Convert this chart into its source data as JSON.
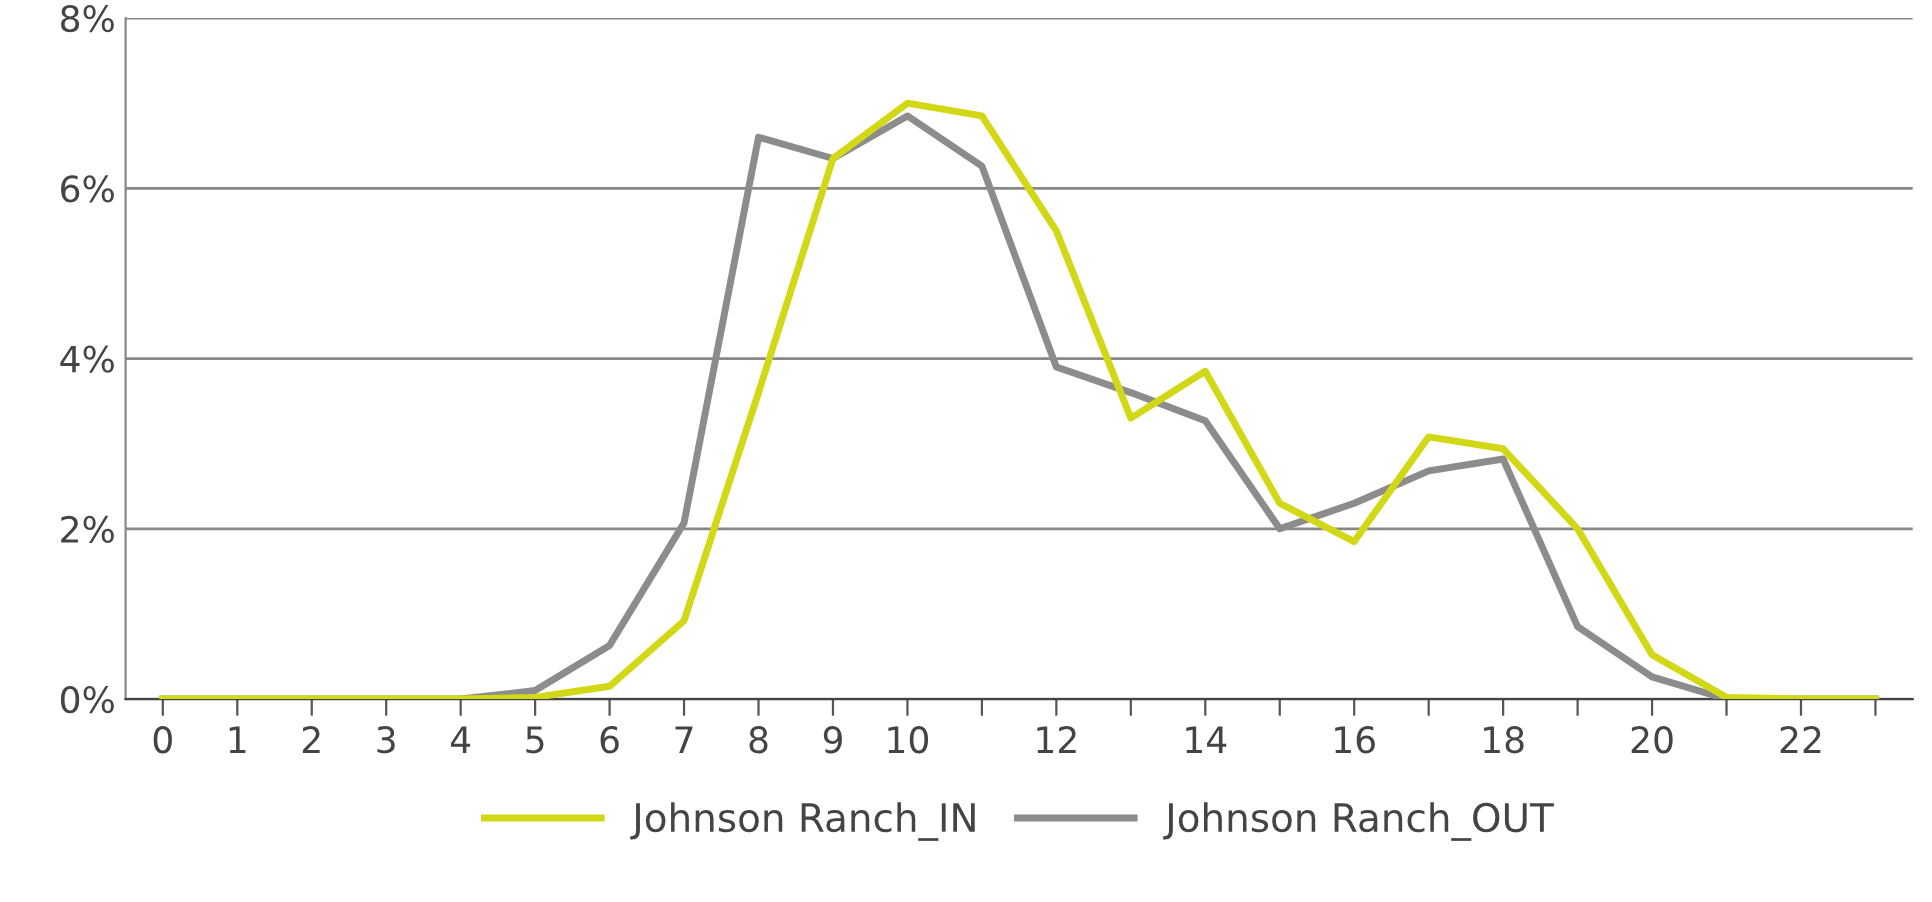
{
  "chart_data": {
    "type": "line",
    "categories": [
      "0",
      "1",
      "2",
      "3",
      "4",
      "5",
      "6",
      "7",
      "8",
      "9",
      "10",
      null,
      "12",
      null,
      "14",
      null,
      "16",
      null,
      "18",
      null,
      "20",
      null,
      "22",
      null
    ],
    "series": [
      {
        "name": "Johnson Ranch_IN",
        "color": "#d2d816",
        "values": [
          0,
          0,
          0,
          0,
          0,
          0.02,
          0.15,
          0.92,
          3.6,
          6.35,
          7.0,
          6.85,
          5.5,
          3.3,
          3.85,
          2.3,
          1.85,
          3.08,
          2.94,
          2.0,
          0.52,
          0.02,
          0,
          0
        ]
      },
      {
        "name": "Johnson Ranch_OUT",
        "color": "#8c8c8c",
        "values": [
          0,
          0,
          0,
          0,
          0,
          0.1,
          0.63,
          2.07,
          6.6,
          6.35,
          6.85,
          6.26,
          3.9,
          3.6,
          3.27,
          2.0,
          2.3,
          2.68,
          2.82,
          0.85,
          0.26,
          0,
          0,
          0
        ]
      }
    ],
    "ylim": [
      0,
      8
    ],
    "yticks": [
      {
        "value": 0,
        "label": "0%"
      },
      {
        "value": 2,
        "label": "2%"
      },
      {
        "value": 4,
        "label": "4%"
      },
      {
        "value": 6,
        "label": "6%"
      },
      {
        "value": 8,
        "label": "8%"
      }
    ],
    "grid": "y",
    "legend": "bottom",
    "marker": "none",
    "line_style": "solid"
  }
}
